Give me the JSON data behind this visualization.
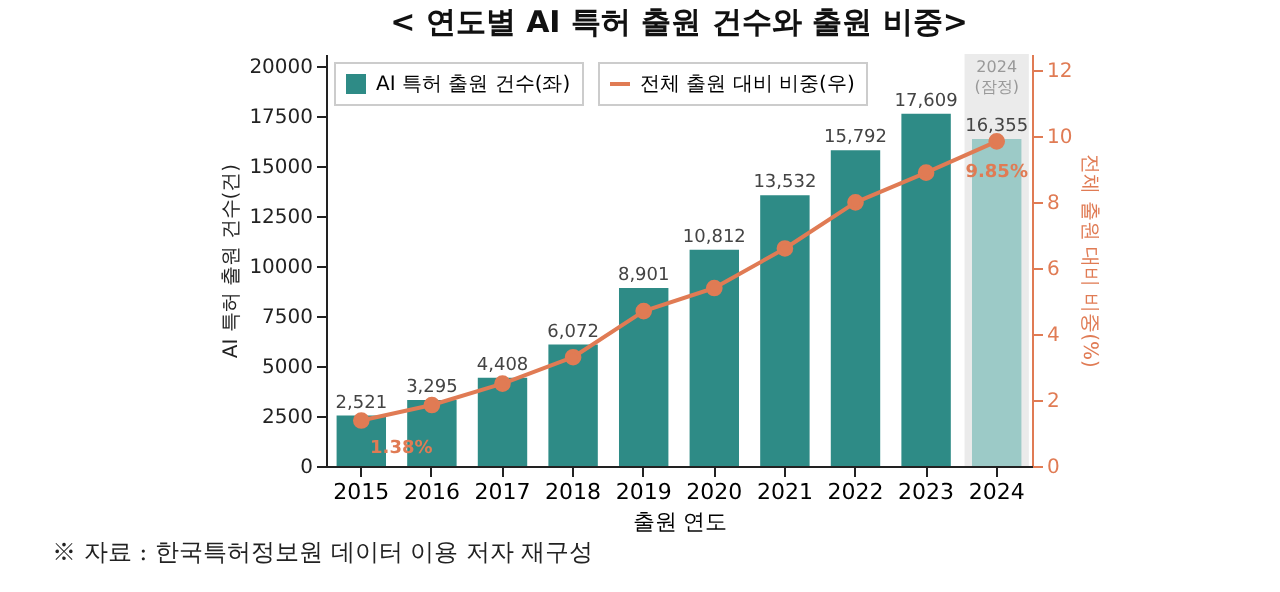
{
  "chart_data": {
    "type": "bar",
    "title": "< 연도별 AI 특허 출원 건수와 출원 비중>",
    "categories": [
      "2015",
      "2016",
      "2017",
      "2018",
      "2019",
      "2020",
      "2021",
      "2022",
      "2023",
      "2024"
    ],
    "series": [
      {
        "name": "AI 특허 출원 건수(좌)",
        "color": "#2e8b86",
        "colors": [
          "#2e8b86",
          "#2e8b86",
          "#2e8b86",
          "#2e8b86",
          "#2e8b86",
          "#2e8b86",
          "#2e8b86",
          "#2e8b86",
          "#2e8b86",
          "#9ccac7"
        ],
        "values": [
          2521,
          3295,
          4408,
          6072,
          8901,
          10812,
          13532,
          15792,
          17609,
          16355
        ],
        "value_labels": [
          "2,521",
          "3,295",
          "4,408",
          "6,072",
          "8,901",
          "10,812",
          "13,532",
          "15,792",
          "17,609",
          "16,355"
        ]
      },
      {
        "name": "전체 출원 대비 비중(우)",
        "type": "line",
        "axis": "y2",
        "color": "#e07b54",
        "values": [
          1.38,
          1.85,
          2.5,
          3.3,
          4.7,
          5.4,
          6.6,
          8.0,
          8.9,
          9.85
        ],
        "value_labels": [
          "1.38%",
          null,
          null,
          null,
          null,
          null,
          null,
          null,
          null,
          "9.85%"
        ]
      }
    ],
    "xlabel": "출원 연도",
    "ylabel": "AI 특허 출원 건수(건)",
    "y2label": "전체 출원 대비 비중(%)",
    "ylim": [
      0,
      20600
    ],
    "yticks": [
      0,
      2500,
      5000,
      7500,
      10000,
      12500,
      15000,
      17500,
      20000
    ],
    "y2lim": [
      0,
      12.5
    ],
    "y2ticks": [
      0,
      2,
      4,
      6,
      8,
      10,
      12
    ],
    "bands": [
      {
        "axis": "x",
        "from": "2024",
        "to": "2024",
        "label": "2024\n(잠정)",
        "color": "#ebebeb"
      }
    ],
    "annotations": [
      "※ 자료 : 한국특허정보원 데이터 이용 저자 재구성"
    ],
    "legend": "top left",
    "marker": "circle",
    "line_style": "solid",
    "grid": false
  }
}
